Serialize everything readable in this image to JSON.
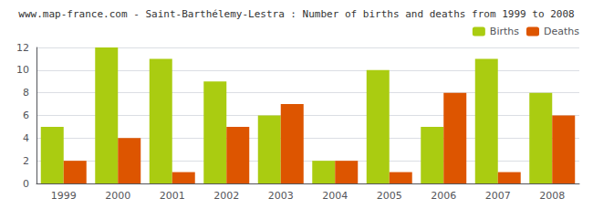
{
  "chart_data": {
    "type": "bar",
    "title": "www.map-france.com - Saint-Barthélemy-Lestra : Number of births and deaths from 1999 to 2008",
    "categories": [
      "1999",
      "2000",
      "2001",
      "2002",
      "2003",
      "2004",
      "2005",
      "2006",
      "2007",
      "2008"
    ],
    "series": [
      {
        "name": "Births",
        "color": "#aacc11",
        "values": [
          5,
          12,
          11,
          9,
          6,
          2,
          10,
          5,
          11,
          8
        ]
      },
      {
        "name": "Deaths",
        "color": "#dd5500",
        "values": [
          2,
          4,
          1,
          5,
          7,
          2,
          1,
          8,
          1,
          6
        ]
      }
    ],
    "ylim": [
      0,
      12
    ],
    "yticks": [
      0,
      2,
      4,
      6,
      8,
      10,
      12
    ],
    "grid": true,
    "legend": "upper right"
  }
}
